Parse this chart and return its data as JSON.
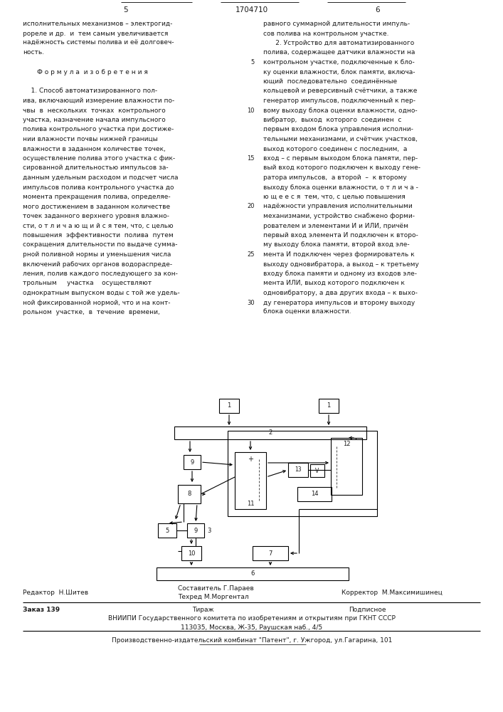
{
  "page_number_left": "5",
  "page_number_center": "1704710",
  "page_number_right": "6",
  "left_col": [
    "исполнительных механизмов – электрогид-",
    "рореле и др.  и  тем самым увеличивается",
    "надёжность системы полива и её долговеч-",
    "ность.",
    "",
    "       Ф о р м у л а  и з о б р е т е н и я",
    "",
    "    1. Способ автоматизированного пол-",
    "ива, включающий измерение влажности по-",
    "чвы  в  нескольких  точках  контрольного",
    "участка, назначение начала импульсного",
    "полива контрольного участка при достиже-",
    "нии влажности почвы нижней границы",
    "влажности в заданном количестве точек,",
    "осуществление полива этого участка с фик-",
    "сированной длительностью импульсов за-",
    "данным удельным расходом и подсчет числа",
    "импульсов полива контрольного участка до",
    "момента прекращения полива, определяе-",
    "мого достижением в заданном количестве",
    "точек заданного верхнего уровня влажно-",
    "сти, о т л и ч а ю щ и й с я тем, что, с целью",
    "повышения  эффективности  полива  путем",
    "сокращения длительности по выдаче сумма-",
    "рной поливной нормы и уменьшения числа",
    "включений рабочих органов водораспреде-",
    "ления, полив каждого последующего за кон-",
    "трольным     участка    осуществляют",
    "однократным выпуском воды с той же удель-",
    "ной фиксированной нормой, что и на конт-",
    "рольном  участке,  в  течение  времени,"
  ],
  "right_col": [
    "равного суммарной длительности импуль-",
    "сов полива на контрольном участке.",
    "      2. Устройство для автоматизированного",
    "полива, содержащее датчики влажности на",
    "контрольном участке, подключенные к бло-",
    "ку оценки влажности, блок памяти, включа-",
    "ющий  последовательно  соединённые",
    "кольцевой и реверсивный счётчики, а также",
    "генератор импульсов, подключенный к пер-",
    "вому выходу блока оценки влажности, одно-",
    "вибратор,  выход  которого  соединен  с",
    "первым входом блока управления исполни-",
    "тельными механизмами, и счётчик участков,",
    "выход которого соединен с последним,  а",
    "вход – с первым выходом блока памяти, пер-",
    "вый вход которого подключен к выходу гене-",
    "ратора импульсов,  а второй  –  к второму",
    "выходу блока оценки влажности, о т л и ч а -",
    "ю щ е е с я  тем, что, с целью повышения",
    "надёжности управления исполнительными",
    "механизмами, устройство снабжено форми-",
    "рователем и элементами И и ИЛИ, причём",
    "первый вход элемента И подключен к второ-",
    "му выходу блока памяти, второй вход эле-",
    "мента И подключен через формирователь к",
    "выходу одновибратора, а выход – к третьему",
    "входу блока памяти и одному из входов эле-",
    "мента ИЛИ, выход которого подключен к",
    "одновибратору, а два других входа – к выхо-",
    "ду генератора импульсов и второму выходу",
    "блока оценки влажности."
  ],
  "line_numbers": [
    5,
    10,
    15,
    20,
    25,
    30
  ],
  "editor": "Редактор  Н.Шитев",
  "composer1": "Составитель Г.Параев",
  "composer2": "Техред М.Моргентал",
  "corrector": "Корректор  М.Максимишинец",
  "order": "Заказ 139",
  "tirazh": "Тираж",
  "podpisnoe": "Подписное",
  "vniiipi": "ВНИИПИ Государственного комитета по изобретениям и открытиям при ГКНТ СССР",
  "address": "113035, Москва, Ж-35, Раушская наб., 4/5",
  "factory": "Производственно-издательский комбинат \"Патент\", г. Ужгород, ул.Гагарина, 101",
  "bg_color": "#ffffff",
  "text_color": "#1a1a1a"
}
